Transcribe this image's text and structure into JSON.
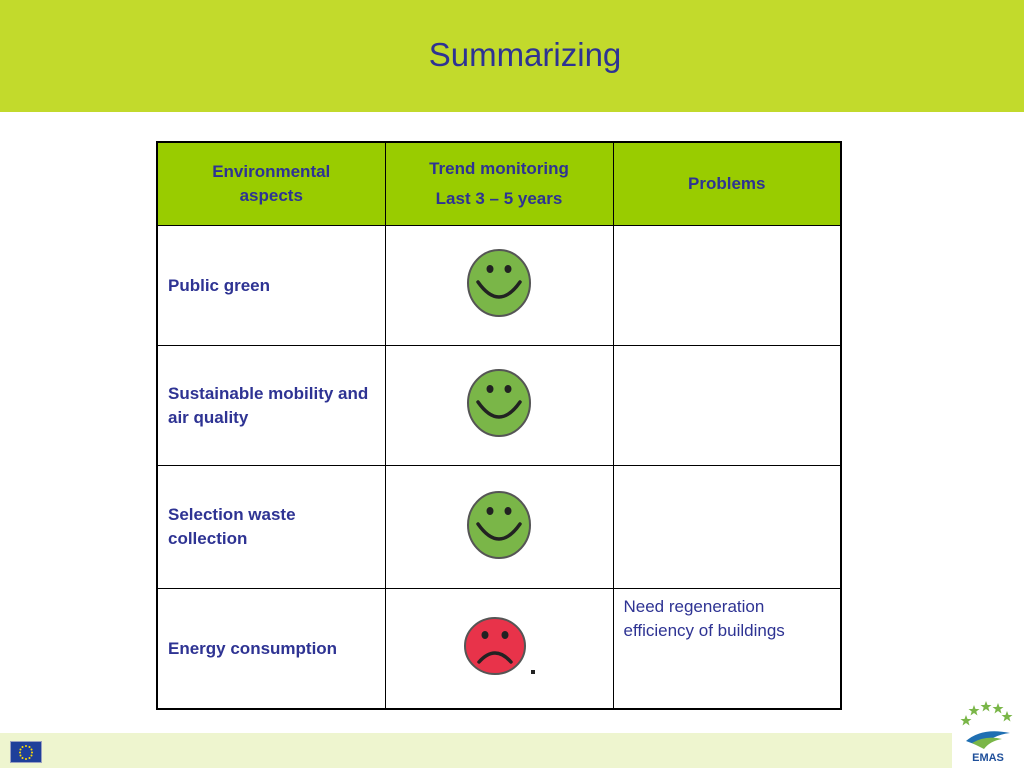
{
  "slide": {
    "title": "Summarizing"
  },
  "table": {
    "headers": {
      "aspects": "Environmental aspects",
      "trend_line1": "Trend monitoring",
      "trend_line2": "Last 3 – 5 years",
      "problems": "Problems"
    },
    "rows": [
      {
        "aspect": "Public green",
        "trend_icon": "happy-face-icon",
        "problem": ""
      },
      {
        "aspect": "Sustainable mobility and air quality",
        "trend_icon": "happy-face-icon",
        "problem": ""
      },
      {
        "aspect": "Selection waste collection",
        "trend_icon": "happy-face-icon",
        "problem": ""
      },
      {
        "aspect": "Energy consumption",
        "trend_icon": "sad-face-icon",
        "problem": "Need regeneration efficiency of buildings"
      }
    ]
  },
  "footer": {
    "left_logo": "eu-flag-icon",
    "right_logo": "emas-logo-icon",
    "right_logo_text": "EMAS"
  },
  "colors": {
    "header_band": "#c2da2c",
    "table_header": "#99cc00",
    "text": "#2e3393",
    "happy_face": "#7ab648",
    "sad_face": "#e8334a"
  }
}
